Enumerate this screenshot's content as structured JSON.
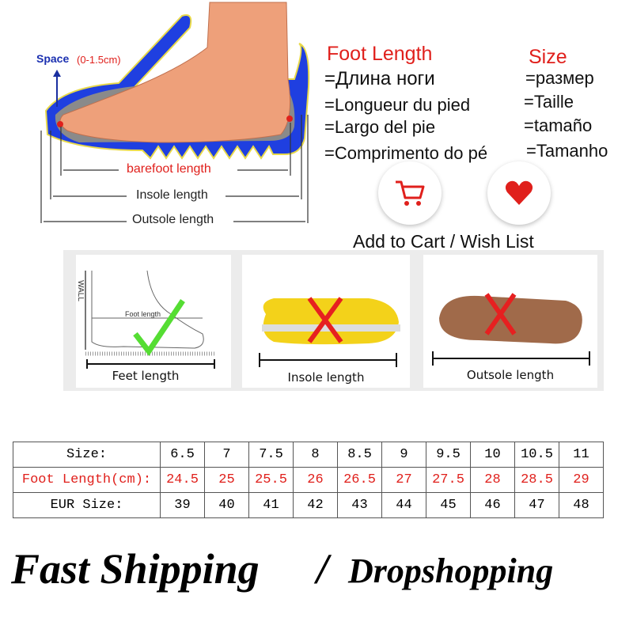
{
  "diagram": {
    "space_label": "Space",
    "space_range": "(0-1.5cm)",
    "barefoot_length": "barefoot length",
    "insole_length": "Insole length",
    "outsole_length": "Outsole length"
  },
  "foot_length": {
    "title": "Foot Length",
    "translations": [
      "=Длина ноги",
      "=Longueur du pied",
      "=Largo del pie",
      "=Comprimento do pé"
    ]
  },
  "size": {
    "title": "Size",
    "translations": [
      "=размер",
      "=Taille",
      "=tamaño",
      "=Tamanho"
    ]
  },
  "actions": {
    "label": "Add to Cart / Wish List",
    "cart_icon": "shopping-cart-icon",
    "wish_icon": "heart-icon",
    "accent": "#e0201c"
  },
  "panels": [
    {
      "label": "Feet length",
      "wall": "WALL",
      "inner": "Foot length",
      "mark": "check"
    },
    {
      "label": "Insole length",
      "mark": "cross"
    },
    {
      "label": "Outsole length",
      "mark": "cross"
    }
  ],
  "size_table": {
    "rows": [
      {
        "header": "Size:",
        "values": [
          "6.5",
          "7",
          "7.5",
          "8",
          "8.5",
          "9",
          "9.5",
          "10",
          "10.5",
          "11"
        ]
      },
      {
        "header": "Foot Length(cm):",
        "values": [
          "24.5",
          "25",
          "25.5",
          "26",
          "26.5",
          "27",
          "27.5",
          "28",
          "28.5",
          "29"
        ]
      },
      {
        "header": "EUR Size:",
        "values": [
          "39",
          "40",
          "41",
          "42",
          "43",
          "44",
          "45",
          "46",
          "47",
          "48"
        ]
      }
    ]
  },
  "footer": {
    "part1": "Fast Shipping",
    "separator": "/",
    "part2": "Dropshopping"
  }
}
